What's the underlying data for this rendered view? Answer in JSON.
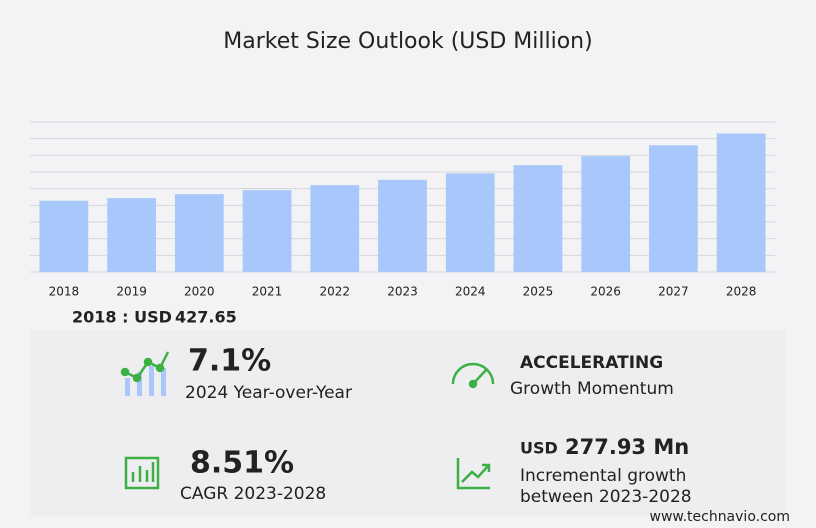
{
  "chart_data": {
    "type": "bar",
    "title": "Market Size Outlook (USD Million)",
    "categories": [
      "2018",
      "2019",
      "2020",
      "2021",
      "2022",
      "2023",
      "2024",
      "2025",
      "2026",
      "2027",
      "2028"
    ],
    "values": [
      427.65,
      443,
      467,
      491,
      521,
      553,
      592,
      641,
      695,
      760,
      831
    ],
    "color": "#a8c8fb",
    "ylim": [
      0,
      900
    ],
    "yticks": [
      0,
      100,
      200,
      300,
      400,
      500,
      600,
      700,
      800,
      900
    ],
    "grid": true
  },
  "highlight": {
    "label": "2018 : USD",
    "value": 427.65
  },
  "stats": [
    {
      "value": "7.1%",
      "label": "2024 Year-over-Year"
    },
    {
      "value": "ACCELERATING",
      "label": "Growth Momentum"
    },
    {
      "value": "8.51%",
      "label": "CAGR 2023-2028"
    },
    {
      "unit": "USD",
      "value": "277.93 Mn",
      "label": "Incremental growth",
      "label2": "between 2023-2028"
    }
  ],
  "footer": "www.technavio.com"
}
